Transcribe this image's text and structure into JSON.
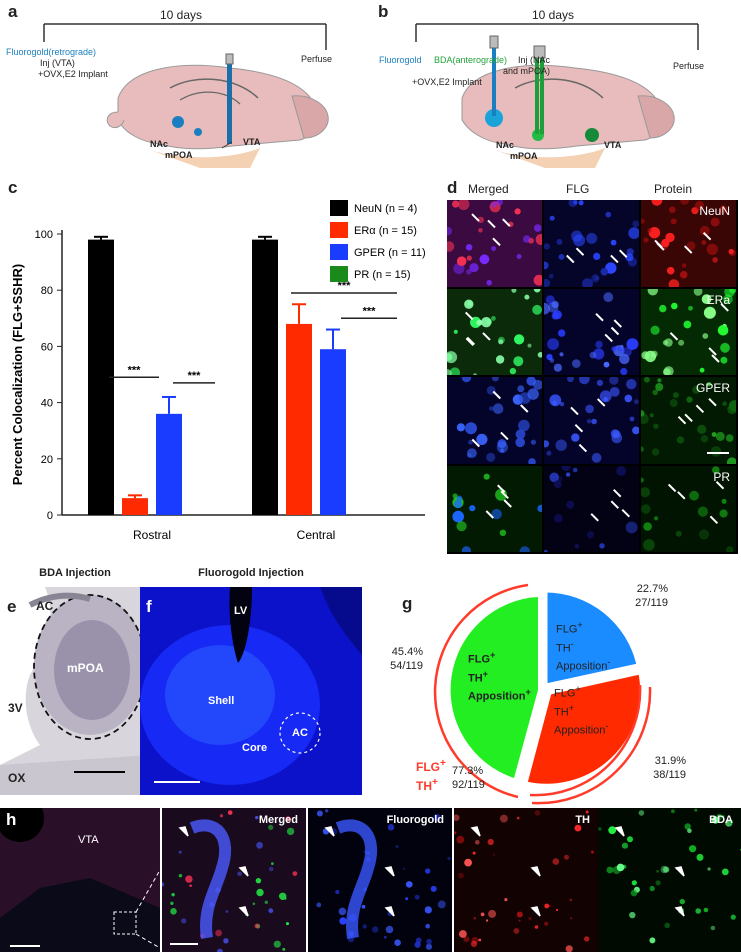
{
  "panels": {
    "a": {
      "letter": "a",
      "duration": "10 days",
      "tracer": "Fluorogold(retrograde)",
      "inj": "Inj (VTA)",
      "implant": "+OVX,E2 Implant",
      "perfuse": "Perfuse",
      "nac": "NAc",
      "mpoa": "mPOA",
      "vta": "VTA"
    },
    "b": {
      "letter": "b",
      "duration": "10 days",
      "tracer1": "Fluorogold",
      "tracer2": "BDA(anterograde)",
      "inj": "Inj (NAc",
      "inj2": "and mPOA)",
      "implant": "+OVX,E2 Implant",
      "perfuse": "Perfuse",
      "nac": "NAc",
      "mpoa": "mPOA",
      "vta": "VTA"
    },
    "c": {
      "letter": "c"
    },
    "d": {
      "letter": "d",
      "columns": [
        "Merged",
        "FLG",
        "Protein"
      ],
      "rows": [
        "NeuN",
        "ERa",
        "GPER",
        "PR"
      ]
    },
    "e": {
      "letter": "e",
      "title": "BDA Injection",
      "ac": "AC",
      "mpoa": "mPOA",
      "v3": "3V",
      "ox": "OX"
    },
    "f": {
      "letter": "f",
      "title": "Fluorogold Injection",
      "lv": "LV",
      "shell": "Shell",
      "core": "Core",
      "ac": "AC"
    },
    "g": {
      "letter": "g",
      "seg_green": {
        "pct": "45.4%",
        "frac": "54/119",
        "l1": "FLG",
        "l2": "TH",
        "l3": "Apposition"
      },
      "seg_blue": {
        "pct": "22.7%",
        "frac": "27/119",
        "l1": "FLG",
        "l2": "TH",
        "l3": "Apposition"
      },
      "seg_red": {
        "pct": "31.9%",
        "frac": "38/119",
        "l1": "FLG",
        "l2": "TH",
        "l3": "Apposition"
      },
      "arc_label1": "FLG",
      "arc_label2": "TH",
      "arc_pct": "77.3%",
      "arc_frac": "92/119",
      "sup_plus": "+",
      "sup_minus": "-"
    },
    "h": {
      "letter": "h",
      "vta": "VTA",
      "labels": [
        "Merged",
        "Fluorogold",
        "TH",
        "BDA"
      ]
    }
  },
  "chart_data": {
    "type": "bar",
    "ylabel": "Percent Colocalization (FLG+SSHR)",
    "ylim": [
      0,
      100
    ],
    "yticks": [
      0,
      20,
      40,
      60,
      80,
      100
    ],
    "categories": [
      "Rostral",
      "Central"
    ],
    "series": [
      {
        "name": "NeuN (n = 4)",
        "color": "#000000",
        "values": [
          98,
          98
        ],
        "errors": [
          1,
          1
        ]
      },
      {
        "name": "ERα (n = 15)",
        "color": "#ff2a00",
        "values": [
          6,
          68
        ],
        "errors": [
          1,
          7
        ]
      },
      {
        "name": "GPER (n = 11)",
        "color": "#1a3cff",
        "values": [
          36,
          59
        ],
        "errors": [
          6,
          7
        ]
      },
      {
        "name": "PR (n = 15)",
        "color": "#1a8a1a",
        "values": [
          0,
          0
        ],
        "errors": [
          0,
          0
        ]
      }
    ],
    "significance": "***"
  },
  "colors": {
    "green": "#22ee22",
    "blue": "#1a8cff",
    "red": "#ff2a00",
    "arc": "#ff3b2b"
  }
}
